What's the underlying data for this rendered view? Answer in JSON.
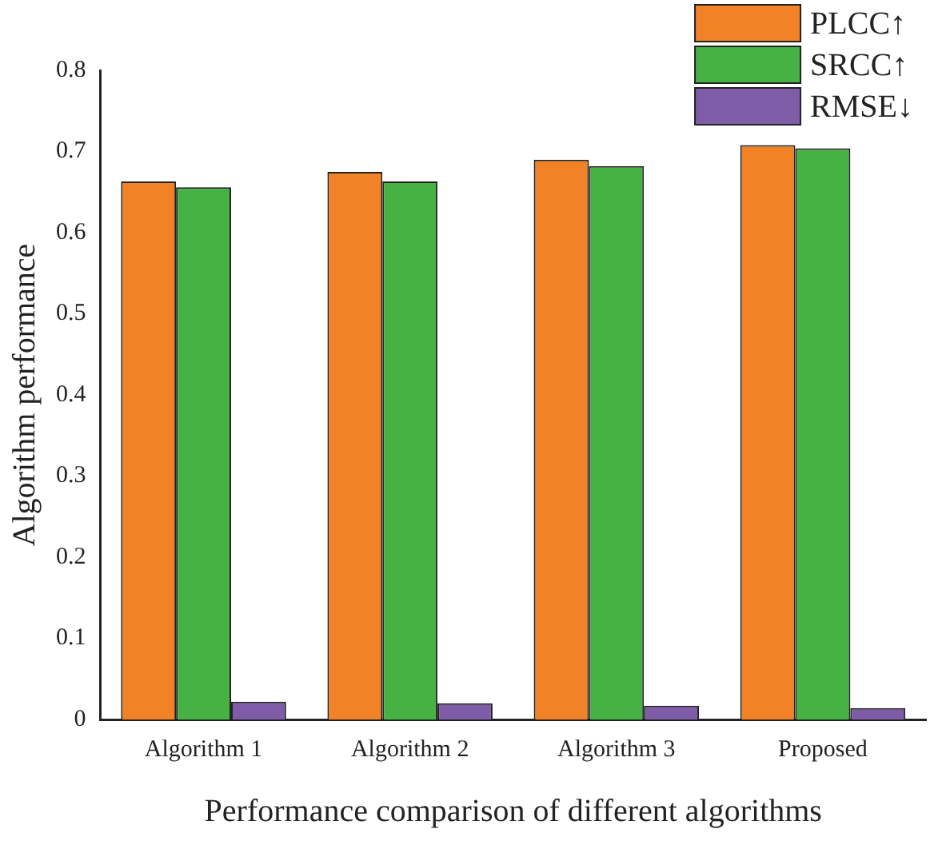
{
  "chart_data": {
    "type": "bar",
    "xlabel": "Performance comparison of different algorithms",
    "ylabel": "Algorithm performance",
    "categories": [
      "Algorithm 1",
      "Algorithm 2",
      "Algorithm 3",
      "Proposed"
    ],
    "series": [
      {
        "name": "PLCC↑",
        "color": "#f28226",
        "values": [
          0.663,
          0.675,
          0.69,
          0.708
        ]
      },
      {
        "name": "SRCC↑",
        "color": "#46b244",
        "values": [
          0.656,
          0.663,
          0.682,
          0.704
        ]
      },
      {
        "name": "RMSE↓",
        "color": "#7e5ca8",
        "values": [
          0.022,
          0.02,
          0.017,
          0.014
        ]
      }
    ],
    "ylim": [
      0,
      0.8
    ],
    "yticks": [
      0,
      0.1,
      0.2,
      0.3,
      0.4,
      0.5,
      0.6,
      0.7,
      0.8
    ],
    "legend": "top right",
    "grid": false
  }
}
